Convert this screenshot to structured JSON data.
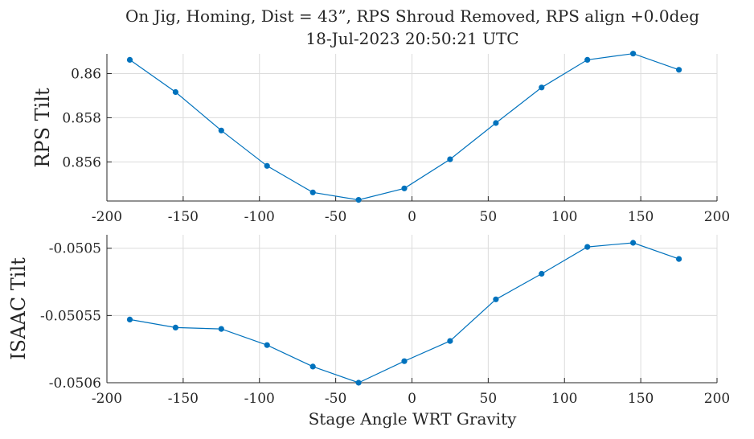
{
  "chart_data": {
    "type": "line",
    "title": "On Jig, Homing, Dist = 43”, RPS Shroud Removed, RPS align +0.0deg",
    "subtitle": "18-Jul-2023 20:50:21 UTC",
    "xlabel": "Stage Angle WRT Gravity",
    "color": "#0072BD",
    "grid": true,
    "panels": [
      {
        "ylabel": "RPS Tilt",
        "xlim": [
          -200,
          200
        ],
        "ylim": [
          0.85423,
          0.86089
        ],
        "xticks": [
          -200,
          -150,
          -100,
          -50,
          0,
          50,
          100,
          150,
          200
        ],
        "yticks": [
          0.856,
          0.858,
          0.86
        ],
        "ytick_labels": [
          "0.856",
          "0.858",
          "0.86"
        ],
        "series": [
          {
            "x": [
              -185,
              -155,
              -125,
              -95,
              -65,
              -35,
              -5,
              25,
              55,
              85,
              115,
              145,
              175
            ],
            "y": [
              0.86062,
              0.85916,
              0.85742,
              0.85582,
              0.85462,
              0.85428,
              0.8548,
              0.85612,
              0.85776,
              0.85937,
              0.86062,
              0.8609,
              0.86017
            ]
          }
        ]
      },
      {
        "ylabel": "ISAAC Tilt",
        "xlim": [
          -200,
          200
        ],
        "ylim": [
          -0.0506,
          -0.05049
        ],
        "xticks": [
          -200,
          -150,
          -100,
          -50,
          0,
          50,
          100,
          150,
          200
        ],
        "yticks": [
          -0.0506,
          -0.05055,
          -0.0505
        ],
        "ytick_labels": [
          "-0.0506",
          "-0.05055",
          "-0.0505"
        ],
        "series": [
          {
            "x": [
              -185,
              -155,
              -125,
              -95,
              -65,
              -35,
              -5,
              25,
              55,
              85,
              115,
              145,
              175
            ],
            "y": [
              -0.050553,
              -0.050559,
              -0.05056,
              -0.050572,
              -0.050588,
              -0.0506,
              -0.050584,
              -0.050569,
              -0.050538,
              -0.050519,
              -0.050499,
              -0.050496,
              -0.050508
            ]
          }
        ]
      }
    ]
  }
}
